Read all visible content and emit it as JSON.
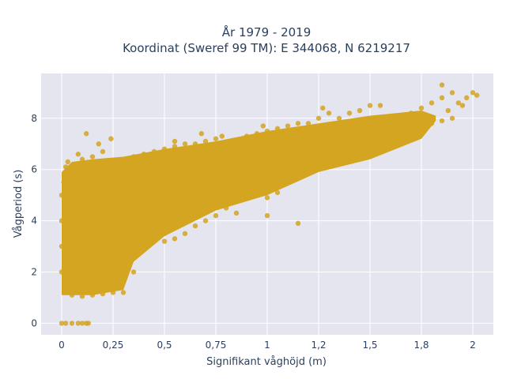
{
  "chart_data": {
    "type": "scatter",
    "title_line1": "År 1979 - 2019",
    "title_line2": "Koordinat (Sweref 99 TM): E 344068, N 6219217",
    "xlabel": "Signifikant våghöjd (m)",
    "ylabel": "Vågperiod (s)",
    "xlim": [
      -0.1,
      2.1
    ],
    "ylim": [
      -0.45,
      9.75
    ],
    "x_ticks": [
      0,
      0.25,
      0.5,
      0.75,
      1,
      1.25,
      1.5,
      1.75,
      2
    ],
    "x_tick_labels": [
      "0",
      "0,25",
      "0,5",
      "0,75",
      "1",
      "1,2",
      "1,5",
      "1,8",
      "2"
    ],
    "y_ticks": [
      0,
      2,
      4,
      6,
      8
    ],
    "y_tick_labels": [
      "0",
      "2",
      "4",
      "6",
      "8"
    ],
    "grid": true,
    "background_color": "#e5e5f0",
    "marker_color": "#d4a520",
    "series": [
      {
        "points": [
          [
            0.0,
            0.0
          ],
          [
            0.02,
            0.0
          ],
          [
            0.05,
            0.0
          ],
          [
            0.08,
            0.0
          ],
          [
            0.1,
            0.0
          ],
          [
            0.12,
            0.0
          ],
          [
            0.13,
            0.0
          ],
          [
            0.02,
            1.2
          ],
          [
            0.05,
            1.1
          ],
          [
            0.1,
            1.05
          ],
          [
            0.15,
            1.1
          ],
          [
            0.2,
            1.15
          ],
          [
            0.25,
            1.2
          ],
          [
            0.3,
            1.2
          ],
          [
            0.0,
            2.0
          ],
          [
            0.0,
            3.0
          ],
          [
            0.0,
            4.0
          ],
          [
            0.0,
            5.0
          ],
          [
            0.01,
            5.5
          ],
          [
            0.02,
            6.1
          ],
          [
            0.03,
            6.3
          ],
          [
            0.05,
            6.0
          ],
          [
            0.08,
            6.6
          ],
          [
            0.1,
            6.4
          ],
          [
            0.12,
            6.2
          ],
          [
            0.15,
            6.5
          ],
          [
            0.2,
            6.7
          ],
          [
            0.24,
            7.2
          ],
          [
            0.05,
            3.5
          ],
          [
            0.1,
            3.0
          ],
          [
            0.15,
            2.5
          ],
          [
            0.2,
            2.2
          ],
          [
            0.25,
            2.0
          ],
          [
            0.3,
            1.8
          ],
          [
            0.35,
            2.0
          ],
          [
            0.1,
            4.5
          ],
          [
            0.15,
            5.0
          ],
          [
            0.2,
            5.5
          ],
          [
            0.25,
            6.0
          ],
          [
            0.3,
            6.3
          ],
          [
            0.35,
            6.5
          ],
          [
            0.4,
            6.6
          ],
          [
            0.2,
            3.5
          ],
          [
            0.25,
            3.8
          ],
          [
            0.3,
            4.0
          ],
          [
            0.35,
            4.2
          ],
          [
            0.4,
            4.5
          ],
          [
            0.45,
            4.8
          ],
          [
            0.5,
            5.0
          ],
          [
            0.3,
            2.5
          ],
          [
            0.35,
            2.8
          ],
          [
            0.4,
            3.0
          ],
          [
            0.45,
            3.2
          ],
          [
            0.5,
            3.5
          ],
          [
            0.55,
            3.8
          ],
          [
            0.6,
            4.0
          ],
          [
            0.45,
            6.7
          ],
          [
            0.5,
            6.8
          ],
          [
            0.55,
            6.9
          ],
          [
            0.6,
            7.0
          ],
          [
            0.65,
            7.0
          ],
          [
            0.7,
            7.1
          ],
          [
            0.75,
            7.2
          ],
          [
            0.55,
            5.5
          ],
          [
            0.6,
            5.8
          ],
          [
            0.65,
            6.0
          ],
          [
            0.7,
            6.2
          ],
          [
            0.75,
            6.3
          ],
          [
            0.8,
            6.5
          ],
          [
            0.85,
            6.6
          ],
          [
            0.6,
            4.5
          ],
          [
            0.65,
            4.7
          ],
          [
            0.7,
            4.9
          ],
          [
            0.75,
            5.0
          ],
          [
            0.8,
            5.2
          ],
          [
            0.85,
            5.4
          ],
          [
            0.9,
            5.6
          ],
          [
            0.5,
            3.2
          ],
          [
            0.55,
            3.3
          ],
          [
            0.6,
            3.5
          ],
          [
            0.65,
            3.8
          ],
          [
            0.7,
            4.0
          ],
          [
            0.75,
            4.2
          ],
          [
            0.8,
            4.5
          ],
          [
            0.9,
            7.3
          ],
          [
            0.95,
            7.4
          ],
          [
            1.0,
            7.5
          ],
          [
            1.05,
            7.6
          ],
          [
            1.1,
            7.7
          ],
          [
            1.15,
            7.8
          ],
          [
            1.2,
            7.8
          ],
          [
            0.9,
            6.2
          ],
          [
            0.95,
            6.4
          ],
          [
            1.0,
            6.5
          ],
          [
            1.05,
            6.6
          ],
          [
            1.1,
            6.7
          ],
          [
            1.15,
            6.8
          ],
          [
            1.2,
            6.9
          ],
          [
            0.95,
            5.5
          ],
          [
            1.0,
            5.6
          ],
          [
            1.05,
            5.8
          ],
          [
            1.1,
            5.9
          ],
          [
            1.15,
            6.0
          ],
          [
            1.2,
            6.1
          ],
          [
            1.25,
            6.2
          ],
          [
            0.9,
            5.0
          ],
          [
            0.95,
            5.2
          ],
          [
            1.0,
            4.9
          ],
          [
            1.05,
            5.1
          ],
          [
            1.15,
            3.9
          ],
          [
            1.0,
            4.2
          ],
          [
            0.85,
            4.3
          ],
          [
            1.25,
            8.0
          ],
          [
            1.3,
            8.2
          ],
          [
            1.35,
            8.0
          ],
          [
            1.4,
            8.2
          ],
          [
            1.45,
            8.3
          ],
          [
            1.5,
            8.5
          ],
          [
            1.55,
            8.5
          ],
          [
            1.25,
            7.0
          ],
          [
            1.3,
            7.1
          ],
          [
            1.35,
            7.3
          ],
          [
            1.4,
            7.4
          ],
          [
            1.45,
            7.5
          ],
          [
            1.5,
            7.6
          ],
          [
            1.55,
            7.7
          ],
          [
            1.3,
            6.5
          ],
          [
            1.35,
            6.6
          ],
          [
            1.4,
            6.7
          ],
          [
            1.45,
            6.8
          ],
          [
            1.5,
            6.9
          ],
          [
            1.55,
            7.0
          ],
          [
            1.6,
            7.1
          ],
          [
            1.6,
            8.0
          ],
          [
            1.65,
            8.1
          ],
          [
            1.7,
            8.2
          ],
          [
            1.75,
            8.4
          ],
          [
            1.8,
            8.6
          ],
          [
            1.85,
            8.8
          ],
          [
            1.9,
            9.0
          ],
          [
            1.6,
            7.3
          ],
          [
            1.65,
            7.4
          ],
          [
            1.7,
            7.5
          ],
          [
            1.75,
            7.6
          ],
          [
            1.8,
            7.8
          ],
          [
            1.85,
            7.9
          ],
          [
            1.9,
            8.0
          ],
          [
            1.95,
            8.5
          ],
          [
            1.97,
            8.8
          ],
          [
            2.0,
            9.0
          ],
          [
            2.02,
            8.9
          ],
          [
            1.85,
            9.3
          ],
          [
            1.93,
            8.6
          ],
          [
            1.88,
            8.3
          ],
          [
            1.27,
            8.4
          ],
          [
            0.98,
            7.7
          ],
          [
            0.78,
            7.3
          ],
          [
            0.68,
            7.4
          ],
          [
            0.55,
            7.1
          ],
          [
            0.18,
            7.0
          ],
          [
            0.12,
            7.4
          ]
        ]
      }
    ]
  }
}
